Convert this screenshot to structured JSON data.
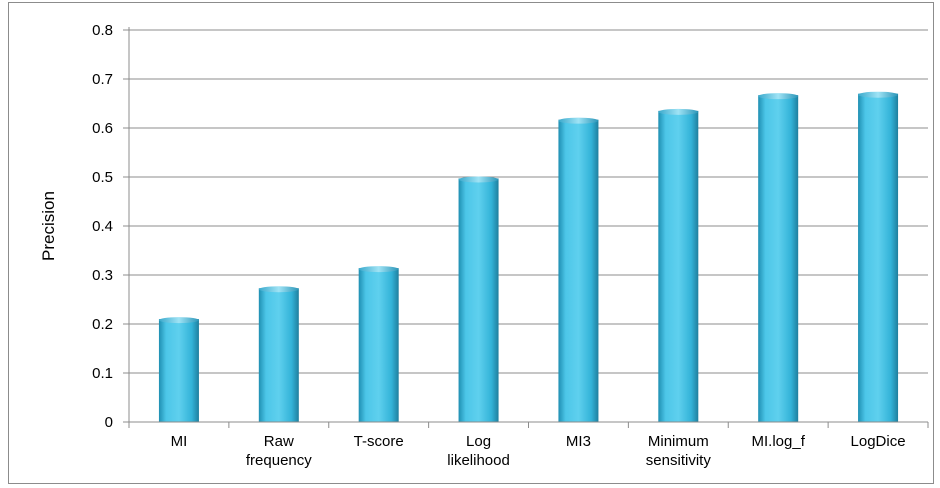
{
  "chart_data": {
    "type": "bar",
    "categories": [
      [
        "MI"
      ],
      [
        "Raw",
        "frequency"
      ],
      [
        "T-score"
      ],
      [
        "Log",
        "likelihood"
      ],
      [
        "MI3"
      ],
      [
        "Minimum",
        "sensitivity"
      ],
      [
        "MI.log_f"
      ],
      [
        "LogDice"
      ]
    ],
    "values": [
      0.21,
      0.273,
      0.314,
      0.497,
      0.617,
      0.635,
      0.667,
      0.67
    ],
    "title": "",
    "xlabel": "",
    "ylabel": "Precision",
    "ylim": [
      0,
      0.8
    ],
    "yticks": [
      "0",
      "0.1",
      "0.2",
      "0.3",
      "0.4",
      "0.5",
      "0.6",
      "0.7",
      "0.8"
    ],
    "grid": "horizontal",
    "legend": "none",
    "colors": {
      "bar_light": "#5fd0ee",
      "bar_mid": "#33b3d8",
      "bar_dark": "#1f7f9e",
      "grid": "#8c8c8c"
    }
  }
}
